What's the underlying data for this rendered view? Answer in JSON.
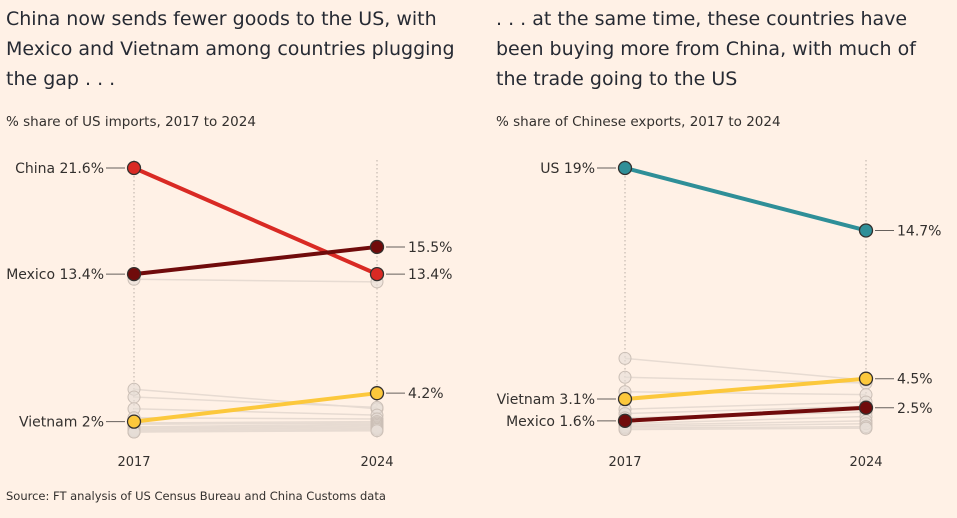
{
  "source": "Source: FT analysis of US Census Bureau and China Customs data",
  "chart_data": [
    {
      "type": "slope",
      "title": "China now sends fewer goods to the US, with Mexico and Vietnam among countries plugging the gap . . .",
      "subtitle": "% share of US imports, 2017 to 2024",
      "x": [
        "2017",
        "2024"
      ],
      "ylim": [
        1.2,
        21.6
      ],
      "series": [
        {
          "name": "China",
          "values": [
            21.6,
            13.4
          ],
          "color": "#d92a24",
          "label_start": "China 21.6%",
          "label_end": "13.4%"
        },
        {
          "name": "Mexico",
          "values": [
            13.4,
            15.5
          ],
          "color": "#700b0b",
          "label_start": "Mexico 13.4%",
          "label_end": "15.5%"
        },
        {
          "name": "Vietnam",
          "values": [
            2.0,
            4.2
          ],
          "color": "#fcc83c",
          "label_start": "Vietnam 2%",
          "label_end": "4.2%"
        }
      ],
      "background_series": [
        [
          13.0,
          12.8
        ],
        [
          4.5,
          3.0
        ],
        [
          3.9,
          3.1
        ],
        [
          3.0,
          2.5
        ],
        [
          2.3,
          2.2
        ],
        [
          1.9,
          2.0
        ],
        [
          1.8,
          1.9
        ],
        [
          1.6,
          1.8
        ],
        [
          1.5,
          1.7
        ],
        [
          1.4,
          1.6
        ],
        [
          1.3,
          1.5
        ],
        [
          1.2,
          1.4
        ],
        [
          1.2,
          1.3
        ]
      ]
    },
    {
      "type": "slope",
      "title": ". . . at the same time, these countries have been buying more from China, with much of the trade going to the US",
      "subtitle": "% share of Chinese exports, 2017 to 2024",
      "x": [
        "2017",
        "2024"
      ],
      "ylim": [
        0.9,
        19.0
      ],
      "series": [
        {
          "name": "US",
          "values": [
            19.0,
            14.7
          ],
          "color": "#2f8f98",
          "label_start": "US 19%",
          "label_end": "14.7%"
        },
        {
          "name": "Vietnam",
          "values": [
            3.1,
            4.5
          ],
          "color": "#fcc83c",
          "label_start": "Vietnam 3.1%",
          "label_end": "4.5%"
        },
        {
          "name": "Mexico",
          "values": [
            1.6,
            2.5
          ],
          "color": "#700b0b",
          "label_start": "Mexico 1.6%",
          "label_end": "2.5%"
        }
      ],
      "background_series": [
        [
          5.9,
          4.4
        ],
        [
          4.6,
          4.2
        ],
        [
          3.6,
          3.4
        ],
        [
          2.4,
          2.9
        ],
        [
          2.1,
          2.6
        ],
        [
          1.8,
          2.2
        ],
        [
          1.4,
          1.9
        ],
        [
          1.3,
          1.6
        ],
        [
          1.2,
          1.4
        ],
        [
          1.1,
          1.2
        ],
        [
          1.0,
          1.1
        ]
      ]
    }
  ]
}
